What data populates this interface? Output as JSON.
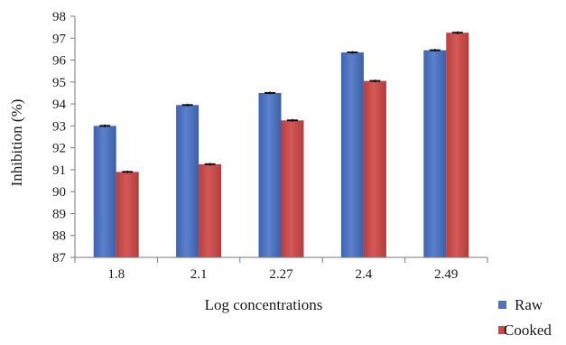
{
  "chart_data": {
    "type": "bar",
    "title": "",
    "xlabel": "Log concentrations",
    "ylabel": "Inhibition (%)",
    "ylim": [
      87,
      98
    ],
    "yticks": [
      87,
      88,
      89,
      90,
      91,
      92,
      93,
      94,
      95,
      96,
      97,
      98
    ],
    "categories": [
      "1.8",
      "2.1",
      "2.27",
      "2.4",
      "2.49"
    ],
    "series": [
      {
        "name": "Raw",
        "color": "#4f72bf",
        "values": [
          93.0,
          93.95,
          94.5,
          96.35,
          96.45
        ],
        "error_bars": true
      },
      {
        "name": "Cooked",
        "color": "#c84b4a",
        "values": [
          90.9,
          91.25,
          93.25,
          95.05,
          97.25
        ],
        "error_bars": true
      }
    ],
    "grid": false,
    "legend_position": "bottom-right"
  }
}
